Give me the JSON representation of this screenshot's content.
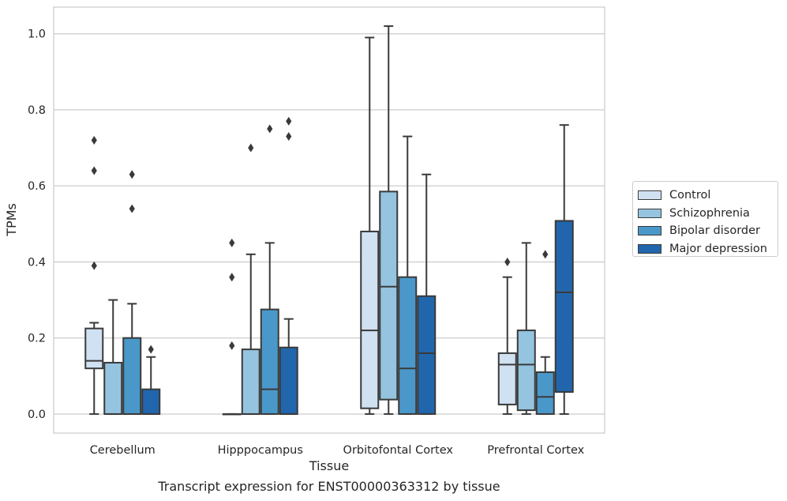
{
  "caption": "Transcript expression for ENST00000363312 by tissue",
  "chart_data": {
    "type": "boxplot",
    "title": "",
    "xlabel": "Tissue",
    "ylabel": "TPMs",
    "ylim": [
      -0.05,
      1.07
    ],
    "yticks": [
      0.0,
      0.2,
      0.4,
      0.6,
      0.8,
      1.0
    ],
    "ytick_labels": [
      "0.0",
      "0.2",
      "0.4",
      "0.6",
      "0.8",
      "1.0"
    ],
    "grid": "horizontal",
    "legend_position": "right",
    "categories": [
      "Cerebellum",
      "Hipppocampus",
      "Orbitofontal Cortex",
      "Prefrontal Cortex"
    ],
    "series": [
      {
        "name": "Control",
        "color": "#d0e1f2",
        "boxes": [
          {
            "whislo": 0.0,
            "q1": 0.12,
            "med": 0.14,
            "q3": 0.225,
            "whishi": 0.24,
            "fliers": [
              0.39,
              0.64,
              0.72
            ]
          },
          {
            "whislo": 0.0,
            "q1": 0.0,
            "med": 0.0,
            "q3": 0.0,
            "whishi": 0.0,
            "fliers": [
              0.18,
              0.36,
              0.45
            ]
          },
          {
            "whislo": 0.0,
            "q1": 0.015,
            "med": 0.22,
            "q3": 0.48,
            "whishi": 0.99,
            "fliers": []
          },
          {
            "whislo": 0.0,
            "q1": 0.025,
            "med": 0.13,
            "q3": 0.16,
            "whishi": 0.36,
            "fliers": [
              0.4
            ]
          }
        ]
      },
      {
        "name": "Schizophrenia",
        "color": "#94c4df",
        "boxes": [
          {
            "whislo": 0.0,
            "q1": 0.0,
            "med": 0.0,
            "q3": 0.135,
            "whishi": 0.3,
            "fliers": []
          },
          {
            "whislo": 0.0,
            "q1": 0.0,
            "med": 0.0,
            "q3": 0.17,
            "whishi": 0.42,
            "fliers": [
              0.7
            ]
          },
          {
            "whislo": 0.0,
            "q1": 0.038,
            "med": 0.335,
            "q3": 0.585,
            "whishi": 1.02,
            "fliers": []
          },
          {
            "whislo": 0.0,
            "q1": 0.01,
            "med": 0.13,
            "q3": 0.22,
            "whishi": 0.45,
            "fliers": []
          }
        ]
      },
      {
        "name": "Bipolar disorder",
        "color": "#4a98c9",
        "boxes": [
          {
            "whislo": 0.0,
            "q1": 0.0,
            "med": 0.0,
            "q3": 0.2,
            "whishi": 0.29,
            "fliers": [
              0.54,
              0.63
            ]
          },
          {
            "whislo": 0.0,
            "q1": 0.0,
            "med": 0.065,
            "q3": 0.275,
            "whishi": 0.45,
            "fliers": [
              0.75
            ]
          },
          {
            "whislo": 0.0,
            "q1": 0.0,
            "med": 0.12,
            "q3": 0.36,
            "whishi": 0.73,
            "fliers": []
          },
          {
            "whislo": 0.0,
            "q1": 0.0,
            "med": 0.045,
            "q3": 0.11,
            "whishi": 0.15,
            "fliers": [
              0.42
            ]
          }
        ]
      },
      {
        "name": "Major depression",
        "color": "#2166ac",
        "boxes": [
          {
            "whislo": 0.0,
            "q1": 0.0,
            "med": 0.0,
            "q3": 0.065,
            "whishi": 0.15,
            "fliers": [
              0.17
            ]
          },
          {
            "whislo": 0.0,
            "q1": 0.0,
            "med": 0.0,
            "q3": 0.175,
            "whishi": 0.25,
            "fliers": [
              0.73,
              0.77
            ]
          },
          {
            "whislo": 0.0,
            "q1": 0.0,
            "med": 0.16,
            "q3": 0.31,
            "whishi": 0.63,
            "fliers": []
          },
          {
            "whislo": 0.0,
            "q1": 0.058,
            "med": 0.32,
            "q3": 0.508,
            "whishi": 0.76,
            "fliers": []
          }
        ]
      }
    ]
  }
}
